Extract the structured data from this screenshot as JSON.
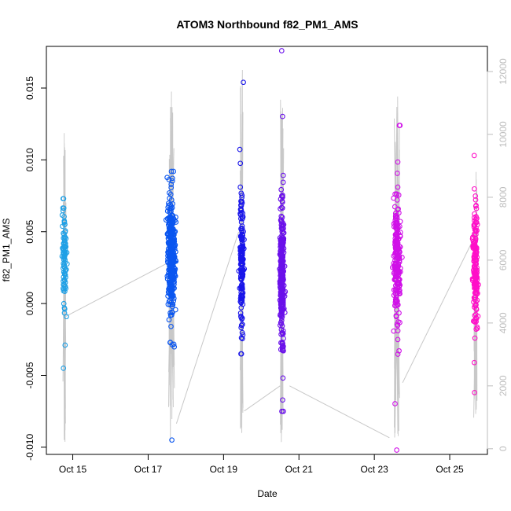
{
  "chart_data": {
    "type": "scatter",
    "title": "ATOM3 Northbound f82_PM1_AMS",
    "xlabel": "Date",
    "ylabel": "f82_PM1_AMS",
    "x_unit": "days (October)",
    "xlim": [
      14.3,
      26.0
    ],
    "ylim": [
      -0.0105,
      0.0179
    ],
    "x_ticks": [
      {
        "value": 15,
        "label": "Oct 15"
      },
      {
        "value": 17,
        "label": "Oct 17"
      },
      {
        "value": 19,
        "label": "Oct 19"
      },
      {
        "value": 21,
        "label": "Oct 21"
      },
      {
        "value": 23,
        "label": "Oct 23"
      },
      {
        "value": 25,
        "label": "Oct 25"
      }
    ],
    "y_ticks": [
      {
        "value": -0.01,
        "label": "-0.010"
      },
      {
        "value": -0.005,
        "label": "-0.005"
      },
      {
        "value": 0.0,
        "label": "0.000"
      },
      {
        "value": 0.005,
        "label": "0.005"
      },
      {
        "value": 0.01,
        "label": "0.010"
      },
      {
        "value": 0.015,
        "label": "0.015"
      }
    ],
    "secondary_axis": {
      "label": "",
      "ylim": [
        -180,
        12800
      ],
      "ticks": [
        {
          "value": 0,
          "label": "0"
        },
        {
          "value": 2000,
          "label": "2000"
        },
        {
          "value": 4000,
          "label": "4000"
        },
        {
          "value": 6000,
          "label": "6000"
        },
        {
          "value": 8000,
          "label": "8000"
        },
        {
          "value": 10000,
          "label": "10000"
        },
        {
          "value": 12000,
          "label": "12000"
        }
      ]
    },
    "altitude_trace": {
      "color": "#c8c8c8",
      "description_values": "flight altitude (right axis) between flights",
      "connectors": [
        {
          "x": [
            14.8,
            17.5
          ],
          "y": [
            4200,
            5900
          ]
        },
        {
          "x": [
            17.75,
            19.4
          ],
          "y": [
            800,
            6900
          ]
        },
        {
          "x": [
            19.55,
            20.5
          ],
          "y": [
            1200,
            2000
          ]
        },
        {
          "x": [
            20.75,
            23.4
          ],
          "y": [
            2000,
            350
          ]
        },
        {
          "x": [
            23.75,
            25.6
          ],
          "y": [
            2100,
            6600
          ]
        }
      ]
    },
    "flights": [
      {
        "x_center": 14.78,
        "x_spread": 0.07,
        "n": 90,
        "mean": 0.0032,
        "sd": 0.0021,
        "min": -0.0045,
        "max": 0.0073,
        "color": "#1fa0e6",
        "alt_max": 10300
      },
      {
        "x_center": 17.62,
        "x_spread": 0.13,
        "n": 420,
        "mean": 0.0032,
        "sd": 0.0022,
        "min": -0.0095,
        "max": 0.0092,
        "color": "#0a56f0",
        "alt_max": 11600
      },
      {
        "x_center": 19.48,
        "x_spread": 0.07,
        "n": 170,
        "mean": 0.0032,
        "sd": 0.0026,
        "min": -0.0035,
        "max": 0.0154,
        "color": "#1a16ea",
        "alt_max": 12100
      },
      {
        "x_center": 20.55,
        "x_spread": 0.08,
        "n": 300,
        "mean": 0.0022,
        "sd": 0.003,
        "min": -0.0075,
        "max": 0.0176,
        "color": "#6a10ea",
        "alt_max": 11200
      },
      {
        "x_center": 23.6,
        "x_spread": 0.12,
        "n": 240,
        "mean": 0.0032,
        "sd": 0.0024,
        "min": -0.0102,
        "max": 0.0124,
        "color": "#d010e8",
        "alt_max": 11300
      },
      {
        "x_center": 25.68,
        "x_spread": 0.08,
        "n": 180,
        "mean": 0.003,
        "sd": 0.0025,
        "min": -0.0062,
        "max": 0.0103,
        "color": "#ff0fc8",
        "alt_max": 9100
      }
    ]
  }
}
